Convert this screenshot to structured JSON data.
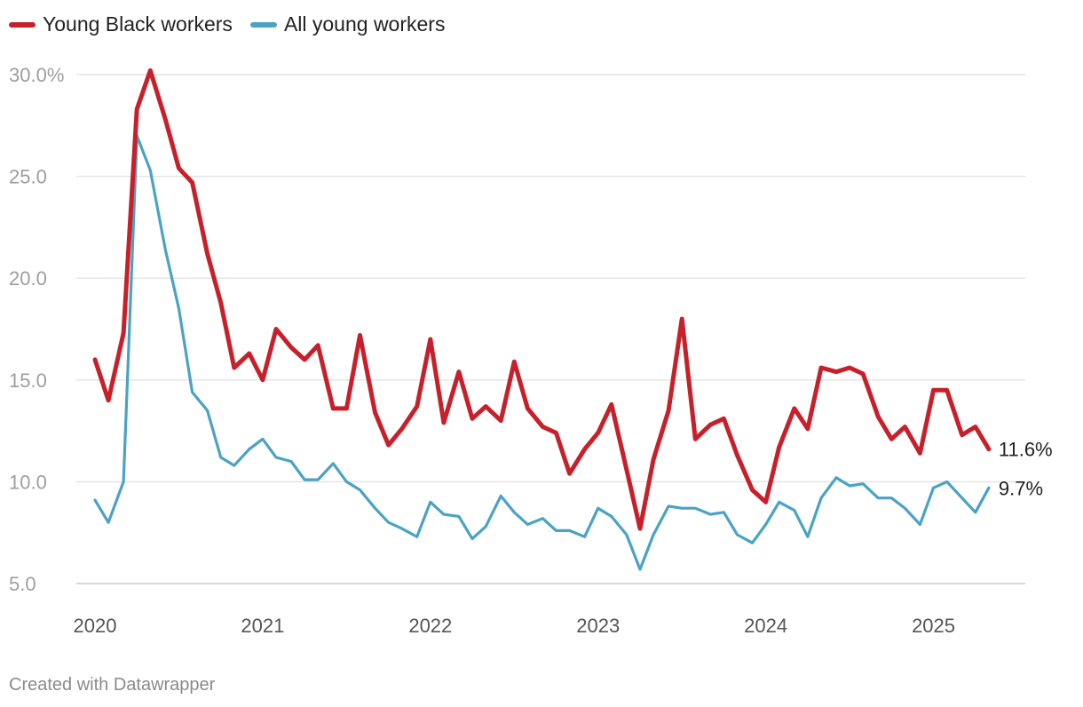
{
  "chart_data": {
    "type": "line",
    "title": "",
    "xlabel": "",
    "ylabel": "",
    "ylim": [
      5,
      30
    ],
    "xlim": [
      2020.0,
      2025.5
    ],
    "y_ticks": [
      {
        "value": 30,
        "label": "30.0%"
      },
      {
        "value": 25,
        "label": "25.0"
      },
      {
        "value": 20,
        "label": "20.0"
      },
      {
        "value": 15,
        "label": "15.0"
      },
      {
        "value": 10,
        "label": "10.0"
      },
      {
        "value": 5,
        "label": "5.0"
      }
    ],
    "x_ticks": [
      {
        "value": 2020,
        "label": "2020"
      },
      {
        "value": 2021,
        "label": "2021"
      },
      {
        "value": 2022,
        "label": "2022"
      },
      {
        "value": 2023,
        "label": "2023"
      },
      {
        "value": 2024,
        "label": "2024"
      },
      {
        "value": 2025,
        "label": "2025"
      }
    ],
    "grid": true,
    "legend_position": "top-left",
    "x": [
      2020.0,
      2020.08,
      2020.17,
      2020.25,
      2020.33,
      2020.42,
      2020.5,
      2020.58,
      2020.67,
      2020.75,
      2020.83,
      2020.92,
      2021.0,
      2021.08,
      2021.17,
      2021.25,
      2021.33,
      2021.42,
      2021.5,
      2021.58,
      2021.67,
      2021.75,
      2021.83,
      2021.92,
      2022.0,
      2022.08,
      2022.17,
      2022.25,
      2022.33,
      2022.42,
      2022.5,
      2022.58,
      2022.67,
      2022.75,
      2022.83,
      2022.92,
      2023.0,
      2023.08,
      2023.17,
      2023.25,
      2023.33,
      2023.42,
      2023.5,
      2023.58,
      2023.67,
      2023.75,
      2023.83,
      2023.92,
      2024.0,
      2024.08,
      2024.17,
      2024.25,
      2024.33,
      2024.42,
      2024.5,
      2024.58,
      2024.67,
      2024.75,
      2024.83,
      2024.92,
      2025.0,
      2025.08,
      2025.17,
      2025.25,
      2025.33
    ],
    "series": [
      {
        "name": "Young Black workers",
        "color": "#c8202a",
        "end_label": "11.6%",
        "values": [
          16.0,
          14.0,
          17.3,
          28.3,
          30.2,
          27.8,
          25.4,
          24.7,
          21.2,
          18.8,
          15.6,
          16.3,
          15.0,
          17.5,
          16.6,
          16.0,
          16.7,
          13.6,
          13.6,
          17.2,
          13.4,
          11.8,
          12.6,
          13.7,
          17.0,
          12.9,
          15.4,
          13.1,
          13.7,
          13.0,
          15.9,
          13.6,
          12.7,
          12.4,
          10.4,
          11.6,
          12.4,
          13.8,
          10.6,
          7.7,
          11.1,
          13.5,
          18.0,
          12.1,
          12.8,
          13.1,
          11.3,
          9.6,
          9.0,
          11.7,
          13.6,
          12.6,
          15.6,
          15.4,
          15.6,
          15.3,
          13.2,
          12.1,
          12.7,
          11.4,
          14.5,
          14.5,
          12.3,
          12.7,
          11.6
        ]
      },
      {
        "name": "All young workers",
        "color": "#4aa3c4",
        "end_label": "9.7%",
        "values": [
          9.1,
          8.0,
          10.0,
          27.0,
          25.3,
          21.4,
          18.5,
          14.4,
          13.5,
          11.2,
          10.8,
          11.6,
          12.1,
          11.2,
          11.0,
          10.1,
          10.1,
          10.9,
          10.0,
          9.6,
          8.7,
          8.0,
          7.7,
          7.3,
          9.0,
          8.4,
          8.3,
          7.2,
          7.8,
          9.3,
          8.5,
          7.9,
          8.2,
          7.6,
          7.6,
          7.3,
          8.7,
          8.3,
          7.4,
          5.7,
          7.4,
          8.8,
          8.7,
          8.7,
          8.4,
          8.5,
          7.4,
          7.0,
          7.9,
          9.0,
          8.6,
          7.3,
          9.2,
          10.2,
          9.8,
          9.9,
          9.2,
          9.2,
          8.7,
          7.9,
          9.7,
          10.0,
          9.2,
          8.5,
          9.7
        ]
      }
    ]
  },
  "legend": {
    "series_0_label": "Young Black workers",
    "series_1_label": "All young workers"
  },
  "footer": {
    "credit": "Created with Datawrapper"
  }
}
